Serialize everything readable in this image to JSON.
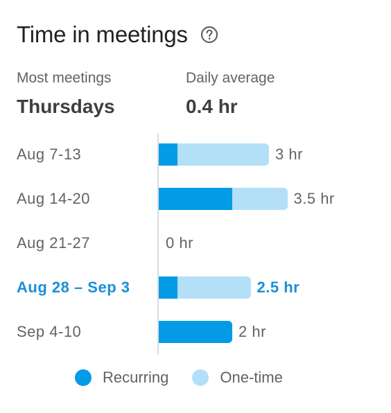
{
  "header": {
    "title": "Time in meetings",
    "help_icon": "help-circle-icon"
  },
  "stats": {
    "most_meetings": {
      "label": "Most meetings",
      "value": "Thursdays"
    },
    "daily_average": {
      "label": "Daily average",
      "value": "0.4 hr"
    }
  },
  "colors": {
    "recurring": "#039be5",
    "one_time": "#b3e0f7",
    "current_week": "#1a8fd8"
  },
  "chart_data": {
    "type": "bar",
    "orientation": "horizontal",
    "stacked": true,
    "categories": [
      "Aug 7-13",
      "Aug 14-20",
      "Aug 21-27",
      "Aug 28 – Sep 3",
      "Sep 4-10"
    ],
    "series": [
      {
        "name": "Recurring",
        "values": [
          0.5,
          2,
          0,
          0.5,
          2
        ]
      },
      {
        "name": "One-time",
        "values": [
          2.5,
          1.5,
          0,
          2,
          0
        ]
      }
    ],
    "value_labels": [
      "3 hr",
      "3.5 hr",
      "0 hr",
      "2.5 hr",
      "2 hr"
    ],
    "highlighted_category": "Aug 28 – Sep 3",
    "xlim": [
      0,
      3.5
    ],
    "legend_position": "bottom"
  }
}
